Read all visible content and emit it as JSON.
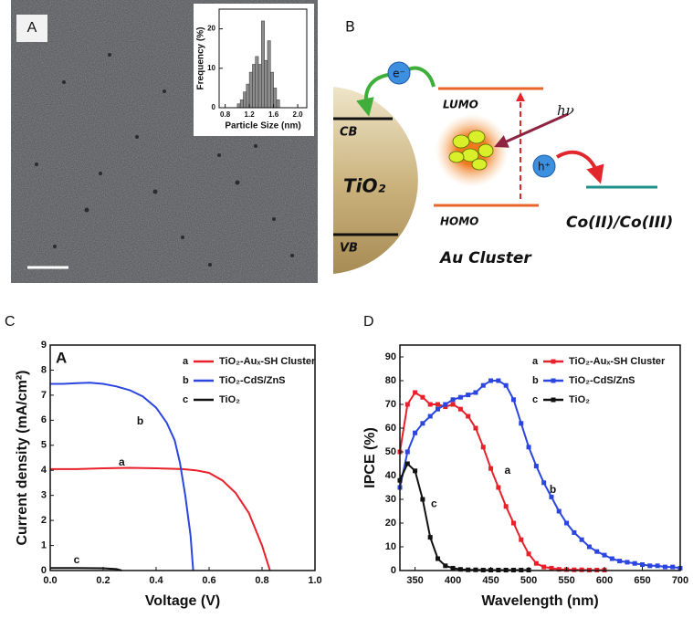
{
  "panels": [
    {
      "label": "A"
    },
    {
      "label": "B"
    },
    {
      "label": "C"
    },
    {
      "label": "D"
    }
  ],
  "diagram": {
    "cb": "CB",
    "vb": "VB",
    "tio2": "TiO₂",
    "lumo": "LUMO",
    "homo": "HOMO",
    "hv": "hν",
    "electron": "e⁻",
    "hole": "h⁺",
    "redox": "Co(II)/Co(III)",
    "cluster": "Au Cluster"
  },
  "chart_data": [
    {
      "type": "histogram",
      "xlabel": "Particle Size (nm)",
      "ylabel": "Frequency (%)",
      "bins": [
        1.0,
        1.05,
        1.1,
        1.15,
        1.2,
        1.25,
        1.3,
        1.35,
        1.4,
        1.45,
        1.5,
        1.55,
        1.6,
        1.65,
        1.7
      ],
      "values": [
        1,
        2,
        4,
        6,
        9,
        11,
        13,
        11,
        22,
        12,
        17,
        9,
        5,
        2
      ],
      "color": "#8c8c8c",
      "xlim": [
        0.7,
        2.15
      ],
      "xticks": [
        0.8,
        1.2,
        1.6,
        {
          "value": 2,
          "label": "2.0"
        }
      ],
      "ylim": [
        0,
        25
      ],
      "yticks": [
        0,
        10,
        20
      ]
    },
    {
      "type": "line",
      "panel_tag": "A",
      "xlabel": "Voltage (V)",
      "ylabel": "Current density (mA/cm²)",
      "legend": "upper right",
      "markers": false,
      "xlim": [
        0,
        1
      ],
      "xticks": [
        {
          "value": 0,
          "label": "0.0"
        },
        0.2,
        0.4,
        0.6,
        0.8,
        {
          "value": 1,
          "label": "1.0"
        }
      ],
      "ylim": [
        0,
        9
      ],
      "yticks": [
        0,
        1,
        2,
        3,
        4,
        5,
        6,
        7,
        8,
        9
      ],
      "series": [
        {
          "key": "a",
          "name": "TiO₂-Auₓ-SH Cluster",
          "color": "#e8202a",
          "x": [
            0,
            0.1,
            0.2,
            0.3,
            0.4,
            0.5,
            0.55,
            0.6,
            0.65,
            0.7,
            0.75,
            0.8,
            0.83
          ],
          "values": [
            4.05,
            4.05,
            4.08,
            4.1,
            4.08,
            4.05,
            4.0,
            3.9,
            3.6,
            3.1,
            2.3,
            1.0,
            0
          ]
        },
        {
          "key": "b",
          "name": "TiO₂-CdS/ZnS",
          "color": "#2b45e0",
          "x": [
            0,
            0.05,
            0.1,
            0.15,
            0.2,
            0.25,
            0.3,
            0.35,
            0.4,
            0.44,
            0.47,
            0.49,
            0.51,
            0.53,
            0.54
          ],
          "values": [
            7.45,
            7.45,
            7.48,
            7.5,
            7.45,
            7.35,
            7.2,
            6.95,
            6.5,
            5.9,
            5.2,
            4.3,
            3.0,
            1.4,
            0
          ]
        },
        {
          "key": "c",
          "name": "TiO₂",
          "color": "#111111",
          "x": [
            0,
            0.1,
            0.2,
            0.25,
            0.27
          ],
          "values": [
            0.1,
            0.1,
            0.09,
            0.06,
            0
          ]
        }
      ]
    },
    {
      "type": "line",
      "xlabel": "Wavelength (nm)",
      "ylabel": "IPCE (%)",
      "legend": "upper right",
      "markers": true,
      "xlim": [
        330,
        700
      ],
      "xticks": [
        350,
        400,
        450,
        500,
        550,
        600,
        650,
        700
      ],
      "ylim": [
        0,
        95
      ],
      "yticks": [
        0,
        10,
        20,
        30,
        40,
        50,
        60,
        70,
        80,
        90
      ],
      "series": [
        {
          "key": "a",
          "name": "TiO₂-Auₓ-SH Cluster",
          "color": "#e8202a",
          "x": [
            330,
            340,
            350,
            360,
            370,
            380,
            390,
            400,
            410,
            420,
            430,
            440,
            450,
            460,
            470,
            480,
            490,
            500,
            510,
            520,
            530,
            540,
            550,
            560,
            570,
            580,
            590,
            600
          ],
          "values": [
            50,
            70,
            75,
            73,
            70,
            70,
            69,
            70,
            68,
            65,
            60,
            52,
            43,
            35,
            27,
            20,
            13,
            7,
            3,
            1.5,
            1,
            0.5,
            0.4,
            0.3,
            0.3,
            0.2,
            0.2,
            0.2
          ]
        },
        {
          "key": "b",
          "name": "TiO₂-CdS/ZnS",
          "color": "#2b45e0",
          "x": [
            330,
            340,
            350,
            360,
            370,
            380,
            390,
            400,
            410,
            420,
            430,
            440,
            450,
            460,
            470,
            480,
            490,
            500,
            510,
            520,
            530,
            540,
            550,
            560,
            570,
            580,
            590,
            600,
            610,
            620,
            630,
            640,
            650,
            660,
            670,
            680,
            690,
            700
          ],
          "values": [
            35,
            50,
            58,
            62,
            65,
            68,
            70,
            72,
            73,
            74,
            75,
            78,
            80,
            80,
            78,
            72,
            62,
            52,
            44,
            37,
            31,
            25,
            20,
            16,
            13,
            10,
            8,
            6.5,
            5,
            4,
            3.5,
            3,
            2.5,
            2,
            2,
            1.5,
            1.5,
            1
          ]
        },
        {
          "key": "c",
          "name": "TiO₂",
          "color": "#111111",
          "x": [
            330,
            340,
            350,
            360,
            370,
            380,
            390,
            400,
            410,
            420,
            430,
            440,
            450,
            460,
            470,
            480,
            490,
            500
          ],
          "values": [
            38,
            45,
            42,
            30,
            14,
            5,
            2,
            1,
            0.5,
            0.3,
            0.3,
            0.2,
            0.2,
            0.2,
            0.2,
            0.2,
            0.2,
            0.2
          ]
        }
      ]
    }
  ]
}
